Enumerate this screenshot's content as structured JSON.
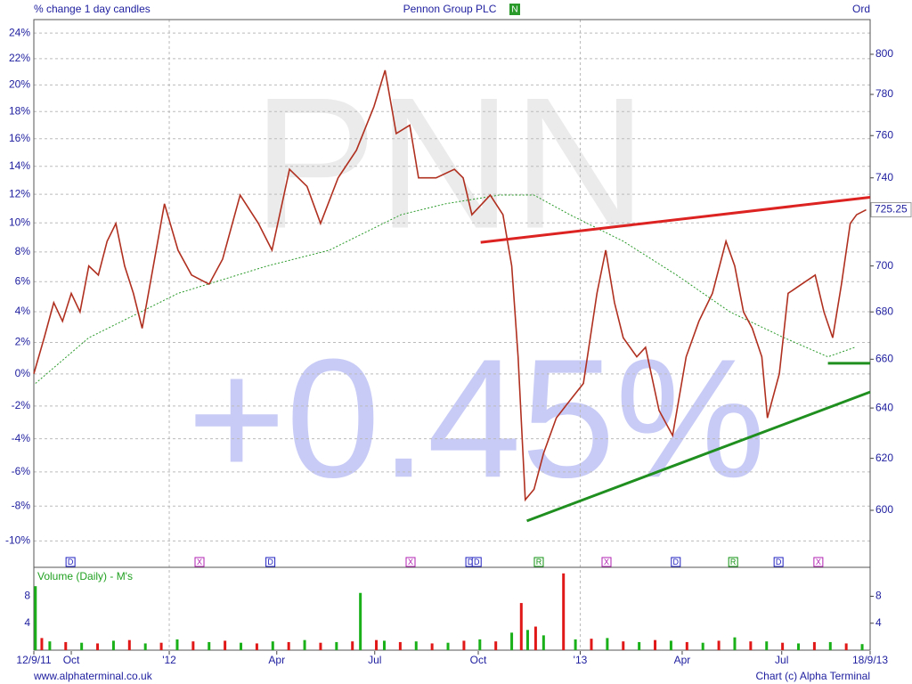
{
  "chart_data": {
    "type": "line",
    "header_left": "% change 1 day candles",
    "title": "Pennon Group PLC",
    "title_badge": "N",
    "header_right": "Ord",
    "watermark": "PNN",
    "change_label": "+0.45%",
    "volume_label": "Volume (Daily) - M's",
    "footer_left": "www.alphaterminal.co.uk",
    "footer_right": "Chart (c) Alpha Terminal",
    "log_scale": true,
    "grid": true,
    "xlim": [
      0,
      105
    ],
    "xticks": [
      {
        "value": 0,
        "label": "12/9/11"
      },
      {
        "value": 4.7,
        "label": "Oct"
      },
      {
        "value": 17.0,
        "label": "'12"
      },
      {
        "value": 30.5,
        "label": "Apr"
      },
      {
        "value": 42.8,
        "label": "Jul"
      },
      {
        "value": 55.8,
        "label": "Oct"
      },
      {
        "value": 68.6,
        "label": "'13"
      },
      {
        "value": 81.4,
        "label": "Apr"
      },
      {
        "value": 93.9,
        "label": "Jul"
      },
      {
        "value": 105,
        "label": "18/9/13"
      }
    ],
    "ylim": [
      578.8,
      817.7
    ],
    "yticks": [
      600,
      620,
      640,
      660,
      680,
      700,
      740,
      760,
      780,
      800
    ],
    "pct_ticks": [
      {
        "value": 810.8,
        "label": "24%"
      },
      {
        "value": 797.8,
        "label": "22%"
      },
      {
        "value": 784.7,
        "label": "20%"
      },
      {
        "value": 771.6,
        "label": "18%"
      },
      {
        "value": 758.5,
        "label": "16%"
      },
      {
        "value": 745.4,
        "label": "14%"
      },
      {
        "value": 732.4,
        "label": "12%"
      },
      {
        "value": 719.3,
        "label": "10%"
      },
      {
        "value": 706.2,
        "label": "8%"
      },
      {
        "value": 693.1,
        "label": "6%"
      },
      {
        "value": 680.1,
        "label": "4%"
      },
      {
        "value": 667.0,
        "label": "2%"
      },
      {
        "value": 653.9,
        "label": "0%"
      },
      {
        "value": 640.8,
        "label": "-2%"
      },
      {
        "value": 627.7,
        "label": "-4%"
      },
      {
        "value": 614.7,
        "label": "-6%"
      },
      {
        "value": 601.6,
        "label": "-8%"
      },
      {
        "value": 588.5,
        "label": "-10%"
      }
    ],
    "price": {
      "color": "#b03020",
      "x": [
        0,
        1.3,
        2.5,
        3.6,
        4.7,
        5.8,
        6.9,
        8.1,
        9.2,
        10.3,
        11.4,
        12.5,
        13.6,
        14.8,
        16.4,
        18.1,
        19.8,
        22.0,
        23.7,
        25.9,
        28.2,
        29.9,
        32.1,
        34.3,
        36.0,
        38.2,
        40.5,
        42.7,
        44.1,
        45.5,
        47.2,
        48.3,
        50.5,
        52.8,
        53.9,
        55.0,
        57.3,
        58.9,
        60.0,
        60.8,
        61.7,
        62.8,
        64.0,
        65.6,
        67.3,
        69.0,
        70.7,
        71.8,
        72.9,
        74.0,
        75.7,
        76.8,
        78.5,
        80.2,
        81.9,
        83.5,
        85.2,
        86.9,
        88.0,
        89.1,
        90.2,
        91.4,
        92.1,
        93.6,
        94.7,
        96.4,
        98.1,
        99.2,
        100.3,
        101.4,
        102.5,
        103.3,
        104.5
      ],
      "values": [
        654,
        669,
        684,
        676,
        688,
        680,
        700,
        696,
        711,
        719,
        700,
        688,
        673,
        696,
        728,
        707,
        696,
        692,
        703,
        732,
        719,
        707,
        744,
        736,
        719,
        740,
        753,
        774,
        792,
        761,
        765,
        740,
        740,
        744,
        740,
        723,
        732,
        723,
        700,
        661,
        604,
        608,
        622,
        636,
        643,
        650,
        688,
        707,
        684,
        669,
        661,
        665,
        639,
        629,
        661,
        676,
        688,
        711,
        700,
        680,
        673,
        661,
        636,
        654,
        688,
        692,
        696,
        680,
        669,
        692,
        719,
        723,
        725.25
      ]
    },
    "ma": {
      "color": "#2a9a2a",
      "x": [
        0.2,
        6.9,
        18.1,
        29.3,
        37.1,
        46.1,
        51.7,
        58.4,
        62.8,
        67.3,
        74.0,
        80.7,
        87.4,
        94.2,
        99.7,
        103.1
      ],
      "values": [
        650,
        669,
        688,
        700,
        707,
        723,
        728,
        732,
        732,
        723,
        711,
        696,
        680,
        669,
        661,
        665
      ]
    },
    "trendlines": [
      {
        "color": "#dd2222",
        "x": [
          56.1,
          105
        ],
        "y": [
          710.5,
          731
        ]
      },
      {
        "color": "#1f8f1f",
        "x": [
          61.9,
          105
        ],
        "y": [
          596,
          646.5
        ]
      },
      {
        "color": "#1f8f1f",
        "x": [
          99.7,
          105
        ],
        "y": [
          658.3,
          658.3
        ]
      }
    ],
    "events": [
      {
        "x": 4.6,
        "label": "D",
        "color": "#2020c0"
      },
      {
        "x": 20.8,
        "label": "X",
        "color": "#b020b0"
      },
      {
        "x": 29.7,
        "label": "D",
        "color": "#2020c0"
      },
      {
        "x": 47.3,
        "label": "X",
        "color": "#b020b0"
      },
      {
        "x": 54.8,
        "label": "D",
        "color": "#2020c0"
      },
      {
        "x": 55.6,
        "label": "D",
        "color": "#2020c0"
      },
      {
        "x": 63.4,
        "label": "R",
        "color": "#109010"
      },
      {
        "x": 71.9,
        "label": "X",
        "color": "#b020b0"
      },
      {
        "x": 80.6,
        "label": "D",
        "color": "#2020c0"
      },
      {
        "x": 87.8,
        "label": "R",
        "color": "#109010"
      },
      {
        "x": 93.5,
        "label": "D",
        "color": "#2020c0"
      },
      {
        "x": 98.5,
        "label": "X",
        "color": "#b020b0"
      }
    ],
    "vlim": [
      0,
      12.3
    ],
    "vticks": [
      4,
      8
    ],
    "volume": [
      {
        "color": "#19b019",
        "x": [
          0.2,
          2,
          6,
          10,
          14,
          18,
          22,
          26,
          30,
          34,
          38,
          41,
          44,
          48,
          52,
          56,
          60,
          62,
          64,
          68,
          72,
          76,
          80,
          84,
          88,
          92,
          96,
          100,
          104
        ],
        "values": [
          9.5,
          1.3,
          1.1,
          1.4,
          1.0,
          1.6,
          1.2,
          1.1,
          1.3,
          1.5,
          1.2,
          8.5,
          1.4,
          1.3,
          1.1,
          1.6,
          2.6,
          3.0,
          2.2,
          1.6,
          1.8,
          1.2,
          1.4,
          1.1,
          1.9,
          1.3,
          1.0,
          1.2,
          0.9
        ]
      },
      {
        "color": "#e01818",
        "x": [
          1,
          4,
          8,
          12,
          16,
          20,
          24,
          28,
          32,
          36,
          40,
          43,
          46,
          50,
          54,
          58,
          61.2,
          63,
          66.5,
          70,
          74,
          78,
          82,
          86,
          90,
          94,
          98,
          102
        ],
        "values": [
          1.8,
          1.2,
          1.0,
          1.5,
          1.1,
          1.3,
          1.4,
          1.0,
          1.2,
          1.1,
          1.3,
          1.5,
          1.2,
          1.0,
          1.4,
          1.3,
          7.0,
          3.5,
          11.4,
          1.7,
          1.3,
          1.5,
          1.2,
          1.4,
          1.3,
          1.1,
          1.2,
          1.0
        ]
      }
    ]
  }
}
